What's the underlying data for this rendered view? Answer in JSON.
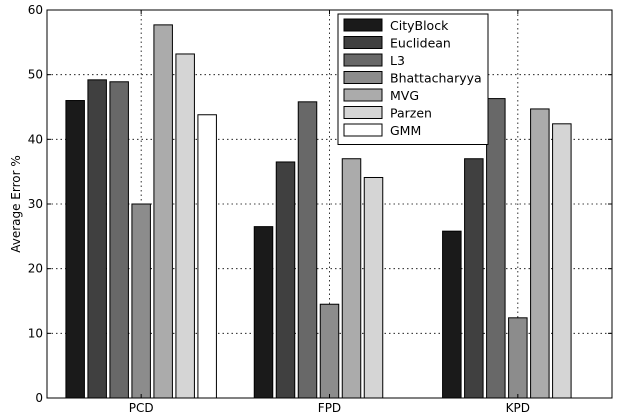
{
  "chart_data": {
    "type": "bar",
    "title": "",
    "xlabel": "",
    "ylabel": "Average Error %",
    "ylim": [
      0,
      60
    ],
    "yticks": [
      0,
      10,
      20,
      30,
      40,
      50,
      60
    ],
    "grid": true,
    "legend_position": "top-center",
    "categories": [
      "PCD",
      "FPD",
      "KPD"
    ],
    "series": [
      {
        "name": "CityBlock",
        "color": "#1a1a1a",
        "values": [
          46.0,
          26.5,
          25.8
        ]
      },
      {
        "name": "Euclidean",
        "color": "#404040",
        "values": [
          49.2,
          36.5,
          37.0
        ]
      },
      {
        "name": "L3",
        "color": "#686868",
        "values": [
          48.9,
          45.8,
          46.3
        ]
      },
      {
        "name": "Bhattacharyya",
        "color": "#8c8c8c",
        "values": [
          30.0,
          14.5,
          12.4
        ]
      },
      {
        "name": "MVG",
        "color": "#ababab",
        "values": [
          57.7,
          37.0,
          44.7
        ]
      },
      {
        "name": "Parzen",
        "color": "#d5d5d5",
        "values": [
          53.2,
          34.1,
          42.4
        ]
      },
      {
        "name": "GMM",
        "color": "#ffffff",
        "values": [
          43.8,
          null,
          null
        ]
      }
    ]
  }
}
